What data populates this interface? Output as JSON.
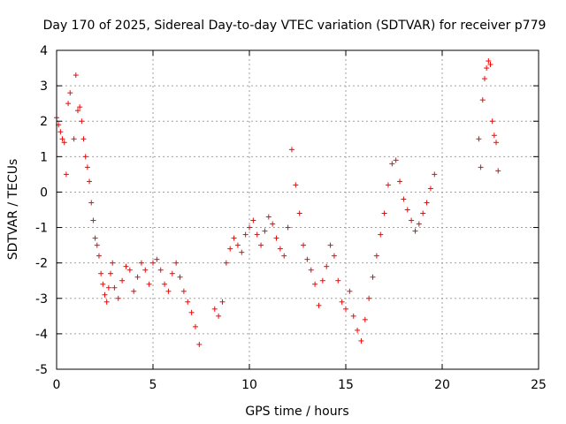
{
  "chart_data": {
    "type": "scatter",
    "title": "Day 170 of 2025, Sidereal Day-to-day VTEC variation (SDTVAR) for receiver p779",
    "xlabel": "GPS time / hours",
    "ylabel": "SDTVAR / TECUs",
    "xlim": [
      0,
      25
    ],
    "ylim": [
      -5,
      4
    ],
    "xticks": [
      0,
      5,
      10,
      15,
      20,
      25
    ],
    "yticks": [
      -5,
      -4,
      -3,
      -2,
      -1,
      0,
      1,
      2,
      3,
      4
    ],
    "xtick_labels": [
      "0",
      "5",
      "10",
      "15",
      "20",
      "25"
    ],
    "ytick_labels": [
      "-5",
      "-4",
      "-3",
      "-2",
      "-1",
      "0",
      "1",
      "2",
      "3",
      "4"
    ],
    "grid": true,
    "marker": "+",
    "colors": {
      "series": "#ff0000",
      "axes": "#000000",
      "grid": "#a0a0a0"
    },
    "series": [
      {
        "name": "SDTVAR",
        "x": [
          0.0,
          0.1,
          0.2,
          0.3,
          0.4,
          0.5,
          0.6,
          0.7,
          0.9,
          1.0,
          1.1,
          1.2,
          1.3,
          1.4,
          1.5,
          1.6,
          1.7,
          1.8,
          1.9,
          2.0,
          2.1,
          2.2,
          2.3,
          2.4,
          2.5,
          2.6,
          2.7,
          2.8,
          2.9,
          3.0,
          3.2,
          3.4,
          3.6,
          3.8,
          4.0,
          4.2,
          4.4,
          4.6,
          4.8,
          5.0,
          5.2,
          5.4,
          5.6,
          5.8,
          6.0,
          6.2,
          6.4,
          6.6,
          6.8,
          7.0,
          7.2,
          7.4,
          8.2,
          8.4,
          8.6,
          8.8,
          9.0,
          9.2,
          9.4,
          9.6,
          9.8,
          10.0,
          10.2,
          10.4,
          10.6,
          10.8,
          11.0,
          11.2,
          11.4,
          11.6,
          11.8,
          12.0,
          12.2,
          12.4,
          12.6,
          12.8,
          13.0,
          13.2,
          13.4,
          13.6,
          13.8,
          14.0,
          14.2,
          14.4,
          14.6,
          14.8,
          15.0,
          15.2,
          15.4,
          15.6,
          15.8,
          16.0,
          16.2,
          16.4,
          16.6,
          16.8,
          17.0,
          17.2,
          17.4,
          17.6,
          17.8,
          18.0,
          18.2,
          18.4,
          18.6,
          18.8,
          19.0,
          19.2,
          19.4,
          19.6,
          21.9,
          22.0,
          22.1,
          22.2,
          22.3,
          22.4,
          22.5,
          22.6,
          22.7,
          22.8,
          22.9
        ],
        "y": [
          2.1,
          1.9,
          1.7,
          1.5,
          1.4,
          0.5,
          2.5,
          2.8,
          1.5,
          3.3,
          2.3,
          2.4,
          2.0,
          1.5,
          1.0,
          0.7,
          0.3,
          -0.3,
          -0.8,
          -1.3,
          -1.5,
          -1.8,
          -2.3,
          -2.6,
          -2.9,
          -3.1,
          -2.7,
          -2.3,
          -2.0,
          -2.7,
          -3.0,
          -2.5,
          -2.1,
          -2.2,
          -2.8,
          -2.4,
          -2.0,
          -2.2,
          -2.6,
          -2.0,
          -1.9,
          -2.2,
          -2.6,
          -2.8,
          -2.3,
          -2.0,
          -2.4,
          -2.8,
          -3.1,
          -3.4,
          -3.8,
          -4.3,
          -3.3,
          -3.5,
          -3.1,
          -2.0,
          -1.6,
          -1.3,
          -1.5,
          -1.7,
          -1.2,
          -1.0,
          -0.8,
          -1.2,
          -1.5,
          -1.1,
          -0.7,
          -0.9,
          -1.3,
          -1.6,
          -1.8,
          -1.0,
          1.2,
          0.2,
          -0.6,
          -1.5,
          -1.9,
          -2.2,
          -2.6,
          -3.2,
          -2.5,
          -2.1,
          -1.5,
          -1.8,
          -2.5,
          -3.1,
          -3.3,
          -2.8,
          -3.5,
          -3.9,
          -4.2,
          -3.6,
          -3.0,
          -2.4,
          -1.8,
          -1.2,
          -0.6,
          0.2,
          0.8,
          0.9,
          0.3,
          -0.2,
          -0.5,
          -0.8,
          -1.1,
          -0.9,
          -0.6,
          -0.3,
          0.1,
          0.5,
          1.5,
          0.7,
          2.6,
          3.2,
          3.5,
          3.7,
          3.6,
          2.0,
          1.6,
          1.4,
          0.6
        ]
      }
    ]
  }
}
